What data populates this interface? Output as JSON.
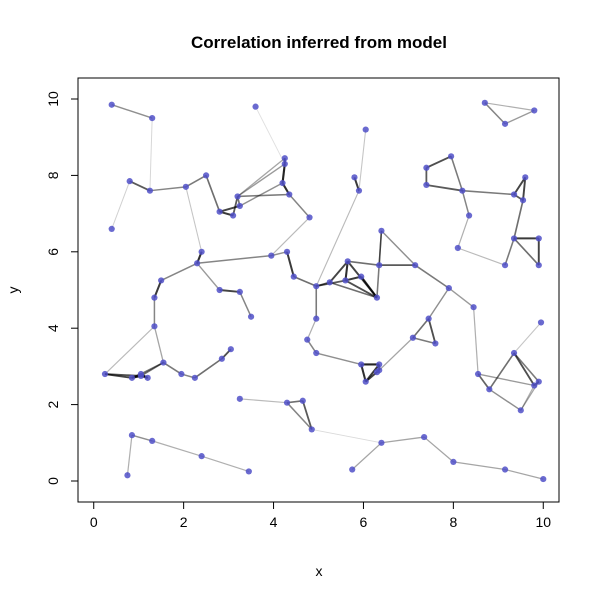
{
  "chart_data": {
    "type": "scatter",
    "title": "Correlation inferred from model",
    "xlabel": "x",
    "ylabel": "y",
    "xlim": [
      -0.35,
      10.35
    ],
    "ylim": [
      -0.55,
      10.55
    ],
    "x_ticks": [
      "0",
      "2",
      "4",
      "6",
      "8",
      "10"
    ],
    "y_ticks": [
      "0",
      "2",
      "4",
      "6",
      "8",
      "10"
    ],
    "grid": false,
    "point_color": "#5050c8",
    "edge_color": "#000000",
    "points": [
      [
        0.4,
        9.85
      ],
      [
        1.3,
        9.5
      ],
      [
        3.6,
        9.8
      ],
      [
        0.4,
        6.6
      ],
      [
        0.8,
        7.85
      ],
      [
        1.25,
        7.6
      ],
      [
        2.05,
        7.7
      ],
      [
        2.5,
        8.0
      ],
      [
        2.8,
        7.05
      ],
      [
        3.1,
        6.95
      ],
      [
        3.2,
        7.45
      ],
      [
        3.25,
        7.2
      ],
      [
        4.25,
        8.3
      ],
      [
        4.2,
        7.8
      ],
      [
        4.35,
        7.5
      ],
      [
        4.25,
        8.45
      ],
      [
        4.8,
        6.9
      ],
      [
        5.8,
        7.95
      ],
      [
        5.9,
        7.6
      ],
      [
        6.05,
        9.2
      ],
      [
        7.4,
        8.2
      ],
      [
        7.4,
        7.75
      ],
      [
        7.95,
        8.5
      ],
      [
        8.2,
        7.6
      ],
      [
        8.35,
        6.95
      ],
      [
        8.7,
        9.9
      ],
      [
        9.15,
        9.35
      ],
      [
        9.8,
        9.7
      ],
      [
        9.35,
        7.5
      ],
      [
        9.6,
        7.95
      ],
      [
        9.55,
        7.35
      ],
      [
        9.35,
        6.35
      ],
      [
        9.9,
        6.35
      ],
      [
        9.15,
        5.65
      ],
      [
        9.9,
        5.65
      ],
      [
        8.1,
        6.1
      ],
      [
        2.4,
        6.0
      ],
      [
        2.3,
        5.7
      ],
      [
        3.95,
        5.9
      ],
      [
        4.3,
        6.0
      ],
      [
        4.45,
        5.35
      ],
      [
        4.95,
        5.1
      ],
      [
        5.25,
        5.2
      ],
      [
        5.65,
        5.75
      ],
      [
        5.6,
        5.25
      ],
      [
        5.95,
        5.35
      ],
      [
        6.3,
        4.8
      ],
      [
        6.4,
        6.55
      ],
      [
        6.35,
        5.65
      ],
      [
        7.15,
        5.65
      ],
      [
        1.5,
        5.25
      ],
      [
        1.35,
        4.8
      ],
      [
        1.35,
        4.05
      ],
      [
        2.8,
        5.0
      ],
      [
        3.25,
        4.95
      ],
      [
        3.5,
        4.3
      ],
      [
        4.95,
        4.25
      ],
      [
        7.9,
        5.05
      ],
      [
        7.45,
        4.25
      ],
      [
        7.6,
        3.6
      ],
      [
        7.1,
        3.75
      ],
      [
        8.45,
        4.55
      ],
      [
        4.75,
        3.7
      ],
      [
        4.95,
        3.35
      ],
      [
        0.25,
        2.8
      ],
      [
        0.85,
        2.7
      ],
      [
        1.05,
        2.75
      ],
      [
        1.2,
        2.7
      ],
      [
        1.05,
        2.8
      ],
      [
        1.55,
        3.1
      ],
      [
        1.95,
        2.8
      ],
      [
        2.25,
        2.7
      ],
      [
        2.85,
        3.2
      ],
      [
        3.05,
        3.45
      ],
      [
        3.25,
        2.15
      ],
      [
        4.3,
        2.05
      ],
      [
        4.65,
        2.1
      ],
      [
        4.85,
        1.35
      ],
      [
        5.95,
        3.05
      ],
      [
        6.35,
        3.05
      ],
      [
        6.05,
        2.6
      ],
      [
        6.3,
        2.85
      ],
      [
        6.35,
        2.9
      ],
      [
        8.55,
        2.8
      ],
      [
        8.8,
        2.4
      ],
      [
        9.35,
        3.35
      ],
      [
        9.8,
        2.5
      ],
      [
        9.9,
        2.6
      ],
      [
        9.95,
        4.15
      ],
      [
        9.5,
        1.85
      ],
      [
        0.85,
        1.2
      ],
      [
        1.3,
        1.05
      ],
      [
        2.4,
        0.65
      ],
      [
        3.45,
        0.25
      ],
      [
        0.75,
        0.15
      ],
      [
        5.75,
        0.3
      ],
      [
        6.4,
        1.0
      ],
      [
        7.35,
        1.15
      ],
      [
        8.0,
        0.5
      ],
      [
        9.15,
        0.3
      ],
      [
        10.0,
        0.05
      ]
    ],
    "edges": [
      [
        0,
        1,
        0.45
      ],
      [
        4,
        5,
        0.7
      ],
      [
        5,
        6,
        0.5
      ],
      [
        6,
        7,
        0.55
      ],
      [
        7,
        8,
        0.6
      ],
      [
        8,
        9,
        0.85
      ],
      [
        9,
        10,
        0.7
      ],
      [
        10,
        11,
        0.6
      ],
      [
        8,
        11,
        0.8
      ],
      [
        10,
        14,
        0.55
      ],
      [
        10,
        12,
        0.4
      ],
      [
        11,
        13,
        0.45
      ],
      [
        12,
        13,
        0.95
      ],
      [
        13,
        14,
        0.9
      ],
      [
        12,
        15,
        0.9
      ],
      [
        14,
        16,
        0.5
      ],
      [
        15,
        10,
        0.35
      ],
      [
        6,
        36,
        0.2
      ],
      [
        3,
        4,
        0.15
      ],
      [
        2,
        12,
        0.08
      ],
      [
        1,
        5,
        0.12
      ],
      [
        17,
        18,
        0.85
      ],
      [
        18,
        41,
        0.25
      ],
      [
        16,
        38,
        0.25
      ],
      [
        19,
        18,
        0.2
      ],
      [
        20,
        21,
        0.7
      ],
      [
        20,
        22,
        0.75
      ],
      [
        22,
        23,
        0.55
      ],
      [
        21,
        23,
        0.7
      ],
      [
        23,
        24,
        0.5
      ],
      [
        23,
        28,
        0.55
      ],
      [
        25,
        26,
        0.5
      ],
      [
        26,
        27,
        0.4
      ],
      [
        25,
        27,
        0.3
      ],
      [
        28,
        29,
        0.8
      ],
      [
        29,
        30,
        0.8
      ],
      [
        28,
        30,
        0.7
      ],
      [
        30,
        31,
        0.6
      ],
      [
        31,
        32,
        0.85
      ],
      [
        31,
        33,
        0.55
      ],
      [
        32,
        34,
        0.8
      ],
      [
        31,
        34,
        0.6
      ],
      [
        24,
        35,
        0.3
      ],
      [
        35,
        33,
        0.25
      ],
      [
        36,
        37,
        0.9
      ],
      [
        37,
        38,
        0.5
      ],
      [
        38,
        39,
        0.45
      ],
      [
        39,
        40,
        0.85
      ],
      [
        40,
        41,
        0.6
      ],
      [
        41,
        42,
        0.7
      ],
      [
        42,
        43,
        0.8
      ],
      [
        43,
        44,
        0.9
      ],
      [
        44,
        45,
        0.85
      ],
      [
        45,
        46,
        0.9
      ],
      [
        43,
        46,
        0.8
      ],
      [
        44,
        46,
        0.75
      ],
      [
        41,
        44,
        0.7
      ],
      [
        42,
        46,
        0.6
      ],
      [
        43,
        48,
        0.6
      ],
      [
        48,
        49,
        0.7
      ],
      [
        47,
        48,
        0.5
      ],
      [
        46,
        47,
        0.55
      ],
      [
        49,
        57,
        0.55
      ],
      [
        47,
        49,
        0.45
      ],
      [
        37,
        50,
        0.5
      ],
      [
        50,
        51,
        0.85
      ],
      [
        51,
        52,
        0.5
      ],
      [
        37,
        53,
        0.4
      ],
      [
        53,
        54,
        0.8
      ],
      [
        54,
        55,
        0.5
      ],
      [
        41,
        56,
        0.55
      ],
      [
        57,
        58,
        0.45
      ],
      [
        58,
        59,
        0.75
      ],
      [
        59,
        60,
        0.55
      ],
      [
        58,
        60,
        0.6
      ],
      [
        57,
        61,
        0.4
      ],
      [
        56,
        62,
        0.3
      ],
      [
        62,
        63,
        0.5
      ],
      [
        64,
        65,
        0.8
      ],
      [
        65,
        66,
        0.95
      ],
      [
        66,
        67,
        0.9
      ],
      [
        67,
        68,
        0.9
      ],
      [
        65,
        68,
        0.85
      ],
      [
        64,
        66,
        0.75
      ],
      [
        66,
        69,
        0.6
      ],
      [
        69,
        70,
        0.55
      ],
      [
        70,
        71,
        0.5
      ],
      [
        71,
        72,
        0.6
      ],
      [
        72,
        73,
        0.75
      ],
      [
        68,
        69,
        0.6
      ],
      [
        52,
        69,
        0.35
      ],
      [
        64,
        52,
        0.25
      ],
      [
        74,
        75,
        0.25
      ],
      [
        75,
        76,
        0.6
      ],
      [
        76,
        77,
        0.7
      ],
      [
        75,
        77,
        0.5
      ],
      [
        63,
        78,
        0.45
      ],
      [
        78,
        79,
        0.95
      ],
      [
        79,
        80,
        0.85
      ],
      [
        80,
        81,
        0.8
      ],
      [
        81,
        82,
        0.9
      ],
      [
        78,
        80,
        0.9
      ],
      [
        79,
        82,
        0.8
      ],
      [
        82,
        60,
        0.35
      ],
      [
        83,
        84,
        0.65
      ],
      [
        84,
        85,
        0.6
      ],
      [
        85,
        86,
        0.75
      ],
      [
        86,
        87,
        0.8
      ],
      [
        85,
        87,
        0.55
      ],
      [
        83,
        86,
        0.4
      ],
      [
        84,
        89,
        0.45
      ],
      [
        89,
        87,
        0.35
      ],
      [
        83,
        61,
        0.3
      ],
      [
        88,
        85,
        0.2
      ],
      [
        89,
        86,
        0.3
      ],
      [
        90,
        91,
        0.45
      ],
      [
        91,
        92,
        0.3
      ],
      [
        92,
        93,
        0.3
      ],
      [
        90,
        94,
        0.3
      ],
      [
        95,
        96,
        0.35
      ],
      [
        96,
        97,
        0.35
      ],
      [
        97,
        98,
        0.35
      ],
      [
        98,
        99,
        0.35
      ],
      [
        99,
        100,
        0.35
      ],
      [
        77,
        96,
        0.1
      ]
    ]
  }
}
